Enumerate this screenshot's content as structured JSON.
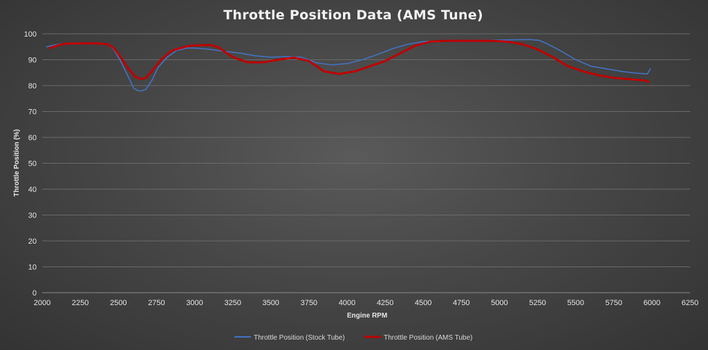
{
  "chart_data": {
    "type": "line",
    "title": "Throttle Position Data (AMS Tune)",
    "xlabel": "Engine RPM",
    "ylabel": "Throttle Position (%)",
    "xlim": [
      2000,
      6250
    ],
    "ylim": [
      0,
      100
    ],
    "x_ticks": [
      2000,
      2250,
      2500,
      2750,
      3000,
      3250,
      3500,
      3750,
      4000,
      4250,
      4500,
      4750,
      5000,
      5250,
      5500,
      5750,
      6000,
      6250
    ],
    "y_ticks": [
      0,
      10,
      20,
      30,
      40,
      50,
      60,
      70,
      80,
      90,
      100
    ],
    "grid": true,
    "legend_position": "bottom",
    "series": [
      {
        "name": "Throttle Position (Stock Tube)",
        "color": "#4472c4",
        "x": [
          2030,
          2080,
          2150,
          2250,
          2350,
          2430,
          2470,
          2510,
          2560,
          2600,
          2630,
          2650,
          2680,
          2720,
          2760,
          2820,
          2880,
          2950,
          3000,
          3100,
          3200,
          3300,
          3400,
          3500,
          3600,
          3700,
          3800,
          3900,
          4000,
          4100,
          4200,
          4300,
          4400,
          4500,
          4600,
          4700,
          4800,
          4900,
          5000,
          5100,
          5200,
          5260,
          5300,
          5400,
          5500,
          5600,
          5700,
          5800,
          5900,
          5970,
          5990
        ],
        "y": [
          95,
          95.7,
          96.3,
          96.4,
          96.4,
          96,
          94,
          90,
          84,
          79,
          78,
          78,
          78.5,
          82,
          87,
          91,
          93.5,
          94.5,
          94.5,
          94,
          93.2,
          92.5,
          91.5,
          91,
          91.2,
          91,
          88.8,
          88,
          88.5,
          90,
          92,
          94.3,
          96,
          97,
          97.2,
          97.3,
          97.4,
          97.5,
          97.6,
          97.7,
          97.8,
          97.5,
          96.5,
          93.5,
          90,
          87.5,
          86.5,
          85.5,
          84.8,
          84.5,
          86.5
        ]
      },
      {
        "name": "Throttle Position (AMS Tube)",
        "color": "#c00000",
        "x": [
          2050,
          2100,
          2150,
          2250,
          2350,
          2430,
          2470,
          2510,
          2560,
          2610,
          2650,
          2680,
          2720,
          2780,
          2850,
          2950,
          3000,
          3100,
          3150,
          3250,
          3350,
          3450,
          3550,
          3650,
          3750,
          3850,
          3950,
          4050,
          4150,
          4250,
          4350,
          4450,
          4550,
          4650,
          4750,
          4850,
          4950,
          5050,
          5150,
          5250,
          5350,
          5450,
          5550,
          5650,
          5750,
          5850,
          5950,
          5980
        ],
        "y": [
          94.5,
          95.5,
          96.2,
          96.3,
          96.3,
          96,
          94.5,
          91.5,
          87,
          83.5,
          82.5,
          83,
          85.5,
          90,
          93.5,
          95.2,
          95.5,
          95.7,
          95,
          91,
          89,
          89,
          90,
          90.8,
          89.5,
          85.5,
          84.5,
          85.5,
          87.5,
          89.5,
          92.5,
          95.5,
          97,
          97.3,
          97.3,
          97.3,
          97.3,
          97,
          96,
          94,
          91,
          87.5,
          85.5,
          84,
          83,
          82.5,
          82,
          81.5
        ]
      }
    ]
  }
}
